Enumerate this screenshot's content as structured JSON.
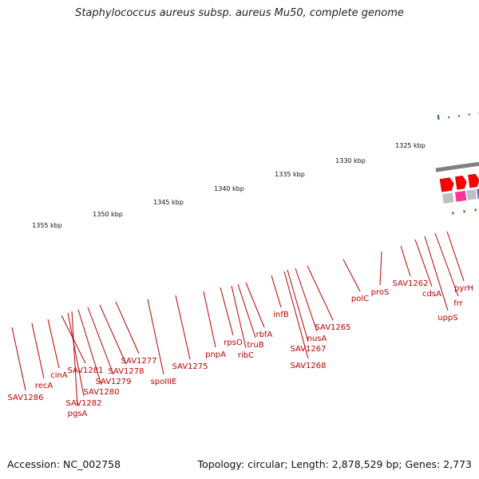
{
  "title": "Staphylococcus aureus subsp. aureus Mu50, complete genome",
  "footer": {
    "accession": "Accession: NC_002758",
    "topology": "Topology: circular; Length: 2,878,529 bp; Genes: 2,773"
  },
  "colors": {
    "backbone": "#808080",
    "ticks": "#1a7a1a",
    "forward_gene": "#ff0000",
    "label": "#c00000"
  },
  "ticks": [
    "1325 kbp",
    "1330 kbp",
    "1335 kbp",
    "1340 kbp",
    "1345 kbp",
    "1350 kbp",
    "1355 kbp"
  ],
  "gene_labels": [
    "SAV1286",
    "recA",
    "cinA",
    "SAV1281",
    "SAV1282",
    "pgsA",
    "SAV1280",
    "SAV1279",
    "SAV1278",
    "SAV1277",
    "spoIIIE",
    "SAV1275",
    "pnpA",
    "rpsO",
    "ribC",
    "truB",
    "rbfA",
    "infB",
    "SAV1268",
    "SAV1267",
    "nusA",
    "SAV1265",
    "polC",
    "proS",
    "SAV1262",
    "cdsA",
    "uppS",
    "frr",
    "pyrH"
  ]
}
